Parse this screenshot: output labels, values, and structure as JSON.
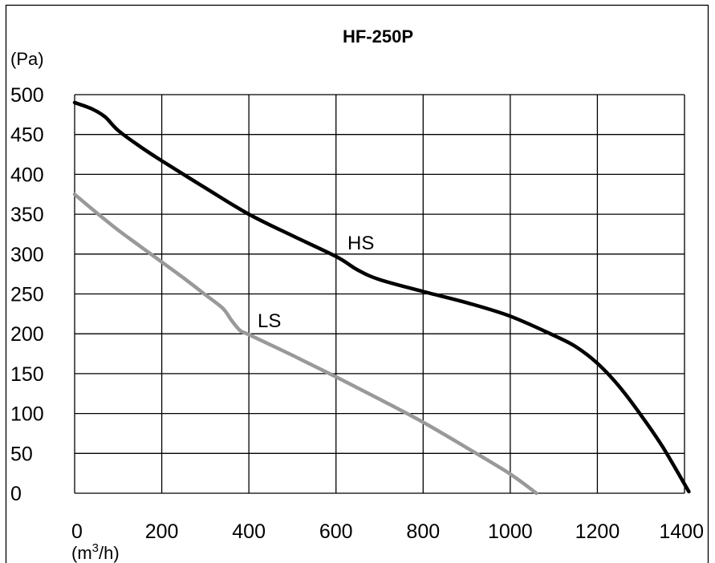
{
  "chart_data": {
    "type": "line",
    "title": "HF-250P",
    "ylabel": "(Pa)",
    "xlabel_prefix": "(m",
    "xlabel_sup": "3",
    "xlabel_suffix": "/h)",
    "xlim": [
      0,
      1400
    ],
    "ylim": [
      0,
      500
    ],
    "x_ticks": [
      0,
      200,
      400,
      600,
      800,
      1000,
      1200,
      1400
    ],
    "x_tick_labels": [
      "0",
      "200",
      "400",
      "600",
      "800",
      "1000",
      "1200",
      "1400"
    ],
    "y_ticks": [
      0,
      50,
      100,
      150,
      200,
      250,
      300,
      350,
      400,
      450,
      500
    ],
    "y_tick_labels": [
      "0",
      "50",
      "100",
      "150",
      "200",
      "250",
      "300",
      "350",
      "400",
      "450",
      "500"
    ],
    "grid": true,
    "series": [
      {
        "name": "HS",
        "color": "#000000",
        "x": [
          0,
          40,
          70,
          100,
          150,
          200,
          300,
          400,
          500,
          600,
          650,
          700,
          800,
          900,
          1000,
          1100,
          1150,
          1200,
          1250,
          1300,
          1350,
          1410
        ],
        "y": [
          490,
          482,
          472,
          455,
          435,
          417,
          383,
          350,
          323,
          297,
          280,
          268,
          253,
          239,
          222,
          198,
          184,
          163,
          134,
          98,
          58,
          2
        ]
      },
      {
        "name": "LS",
        "color": "#999999",
        "x": [
          0,
          50,
          100,
          150,
          200,
          250,
          300,
          340,
          360,
          380,
          400,
          500,
          600,
          700,
          800,
          900,
          1000,
          1060
        ],
        "y": [
          375,
          352,
          330,
          310,
          290,
          270,
          249,
          232,
          217,
          204,
          199,
          173,
          146,
          118,
          89,
          57,
          24,
          0
        ]
      }
    ]
  }
}
